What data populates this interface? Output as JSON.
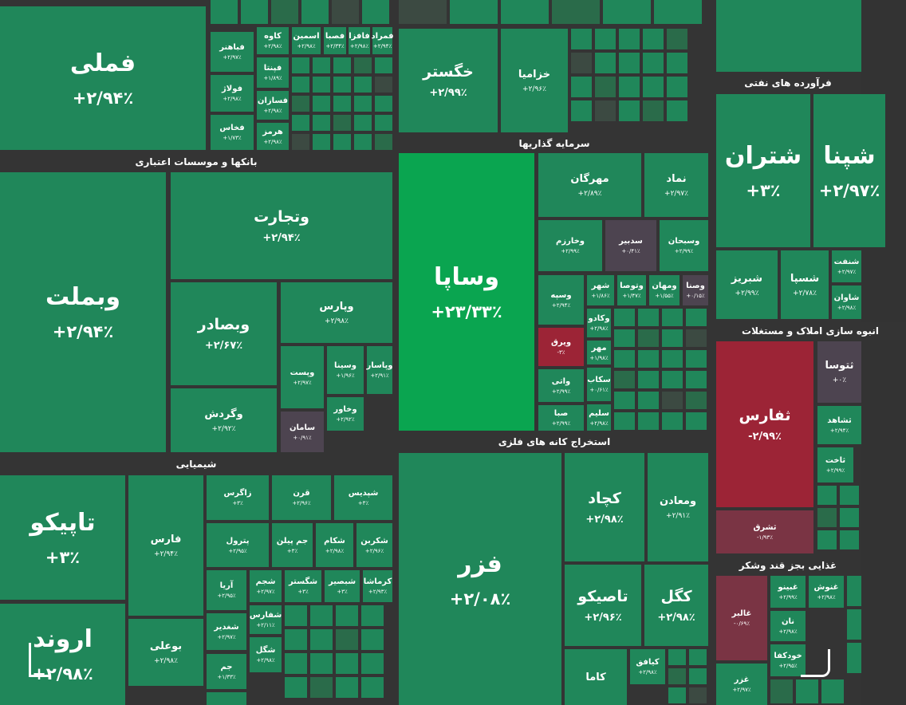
{
  "sectors": [
    {
      "tiles": [
        {
          "label": "فملی",
          "change": "+۲/۹۴٪"
        },
        {
          "label": "فباهنر",
          "change": "+۲/۹۷٪"
        },
        {
          "label": "فولاژ",
          "change": "+۲/۹۸٪"
        },
        {
          "label": "فخاس",
          "change": "+۱/۷۳٪"
        },
        {
          "label": "کاوه",
          "change": "+۲/۹۸٪"
        },
        {
          "label": "اسمین",
          "change": "+۲/۹۸٪"
        },
        {
          "label": "فصبا",
          "change": "+۲/۳۴٪"
        },
        {
          "label": "فافزا",
          "change": "+۲/۹۸٪"
        },
        {
          "label": "فمراد",
          "change": "+۲/۹۴٪"
        },
        {
          "label": "فپنتا",
          "change": "+۱/۸۹٪"
        },
        {
          "label": "فسازان",
          "change": "+۲/۹۸٪"
        },
        {
          "label": "هرمز",
          "change": "+۲/۹۸٪"
        }
      ]
    },
    {
      "title": "بانکها و موسسات اعتباری",
      "tiles": [
        {
          "label": "وبملت",
          "change": "+۲/۹۴٪"
        },
        {
          "label": "وتجارت",
          "change": "+۲/۹۴٪"
        },
        {
          "label": "وبصادر",
          "change": "+۲/۶۷٪"
        },
        {
          "label": "وپارس",
          "change": "+۲/۹۸٪"
        },
        {
          "label": "وگردش",
          "change": "+۲/۹۲٪"
        },
        {
          "label": "وپست",
          "change": "+۲/۹۷٪"
        },
        {
          "label": "وسینا",
          "change": "+۱/۹۶٪"
        },
        {
          "label": "وپاسار",
          "change": "+۲/۹۱٪"
        },
        {
          "label": "وخاور",
          "change": "+۲/۹۲٪"
        },
        {
          "label": "سامان",
          "change": "+۰/۹۱٪",
          "color": "#4d4450"
        }
      ]
    },
    {
      "title": "شیمیایی",
      "tiles": [
        {
          "label": "تاپیکو",
          "change": "+۳٪"
        },
        {
          "label": "اروند",
          "change": "+۲/۹۸٪"
        },
        {
          "label": "فارس",
          "change": "+۲/۹۴٪"
        },
        {
          "label": "بوعلی",
          "change": "+۲/۹۸٪"
        },
        {
          "label": "زاگرس",
          "change": "+۳٪"
        },
        {
          "label": "قرن",
          "change": "+۲/۹۶٪"
        },
        {
          "label": "شپدیس",
          "change": "+۳٪"
        },
        {
          "label": "پترول",
          "change": "+۲/۹۵٪"
        },
        {
          "label": "جم پیلن",
          "change": "+۳٪"
        },
        {
          "label": "شکام",
          "change": "+۲/۹۸٪"
        },
        {
          "label": "شکربن",
          "change": "+۲/۹۶٪"
        },
        {
          "label": "آریا",
          "change": "+۲/۹۵٪"
        },
        {
          "label": "شجم",
          "change": "+۲/۹۷٪"
        },
        {
          "label": "شگستر",
          "change": "+۳٪"
        },
        {
          "label": "شبصیر",
          "change": "+۳٪"
        },
        {
          "label": "کرماشا",
          "change": "+۲/۹۳٪"
        },
        {
          "label": "شفارس",
          "change": "+۲/۱۱٪"
        },
        {
          "label": "شغدیر",
          "change": "+۲/۹۷٪"
        },
        {
          "label": "شگل",
          "change": "+۲/۹۸٪"
        },
        {
          "label": "جم",
          "change": "+۱/۳۳٪"
        }
      ]
    },
    {
      "tiles": [
        {
          "label": "خگستر",
          "change": "+۲/۹۹٪"
        },
        {
          "label": "خزامیا",
          "change": "+۲/۹۶٪"
        }
      ]
    },
    {
      "title": "سرمایه گذاریها",
      "tiles": [
        {
          "label": "وساپا",
          "change": "+۲۳/۳۳٪",
          "color": "#0aa550"
        },
        {
          "label": "مهرگان",
          "change": "+۲/۸۹٪"
        },
        {
          "label": "نماد",
          "change": "+۲/۹۷٪"
        },
        {
          "label": "وخارزم",
          "change": "+۲/۹۹٪"
        },
        {
          "label": "سدبیر",
          "change": "+۰/۴۱٪",
          "color": "#4d4450"
        },
        {
          "label": "وسبحان",
          "change": "+۲/۹۹٪"
        },
        {
          "label": "وسپه",
          "change": "+۲/۹۴٪"
        },
        {
          "label": "ویرق",
          "change": "-۳٪",
          "color": "#9c2436"
        },
        {
          "label": "واتی",
          "change": "+۲/۹۹٪"
        },
        {
          "label": "صبا",
          "change": "+۲/۹۹٪"
        },
        {
          "label": "شهر",
          "change": "+۱/۸۶٪"
        },
        {
          "label": "وتوصا",
          "change": "+۱/۴۷٪"
        },
        {
          "label": "ومهان",
          "change": "+۱/۵۵٪"
        },
        {
          "label": "وصنا",
          "change": "+۰/۱۵٪",
          "color": "#4d4450"
        },
        {
          "label": "وکادو",
          "change": "+۲/۹۸٪"
        },
        {
          "label": "مهر",
          "change": "+۱/۹۸٪"
        },
        {
          "label": "سکاب",
          "change": "+۰/۶۱٪"
        },
        {
          "label": "سلیم",
          "change": "+۲/۹۸٪"
        }
      ]
    },
    {
      "title": "استخراج کانه های فلزی",
      "tiles": [
        {
          "label": "فزر",
          "change": "+۲/۰۸٪"
        },
        {
          "label": "کچاد",
          "change": "+۲/۹۸٪"
        },
        {
          "label": "ومعادن",
          "change": "+۲/۹۱٪"
        },
        {
          "label": "تاصیکو",
          "change": "+۲/۹۶٪"
        },
        {
          "label": "کگل",
          "change": "+۲/۹۸٪"
        },
        {
          "label": "کاما"
        },
        {
          "label": "کیافق",
          "change": "+۲/۹۸٪"
        }
      ]
    },
    {
      "title": "فرآورده های نفتی",
      "tiles": [
        {
          "label": "شتران",
          "change": "+۳٪"
        },
        {
          "label": "شپنا",
          "change": "+۲/۹۷٪"
        },
        {
          "label": "شبریز",
          "change": "+۲/۹۹٪"
        },
        {
          "label": "شسپا",
          "change": "+۲/۷۸٪"
        },
        {
          "label": "شنفت",
          "change": "+۲/۹۷٪"
        },
        {
          "label": "شاوان",
          "change": "+۲/۹۸٪"
        }
      ]
    },
    {
      "title": "انبوه سازی املاک و مستغلات",
      "tiles": [
        {
          "label": "ثفارس",
          "change": "-۲/۹۹٪",
          "color": "#9c2436"
        },
        {
          "label": "ثشرق",
          "change": "-۱/۹۳٪",
          "color": "#7a3444"
        },
        {
          "label": "ثتوسا",
          "change": "+۰٪",
          "color": "#4d4450"
        },
        {
          "label": "ثشاهد",
          "change": "+۲/۹۴٪"
        },
        {
          "label": "ثاخت",
          "change": "+۲/۹۹٪"
        }
      ]
    },
    {
      "title": "غذایی بجز قند وشکر",
      "tiles": [
        {
          "label": "غالبر",
          "change": "-۰/۶۹٪",
          "color": "#7a3444"
        },
        {
          "label": "غزر",
          "change": "+۲/۹۷٪"
        },
        {
          "label": "غبینو",
          "change": "+۲/۹۹٪"
        },
        {
          "label": "غنوش",
          "change": "+۲/۹۸٪"
        },
        {
          "label": "نان",
          "change": "+۲/۹۸٪"
        },
        {
          "label": "خودکفا",
          "change": "+۲/۹۵٪"
        }
      ]
    }
  ]
}
